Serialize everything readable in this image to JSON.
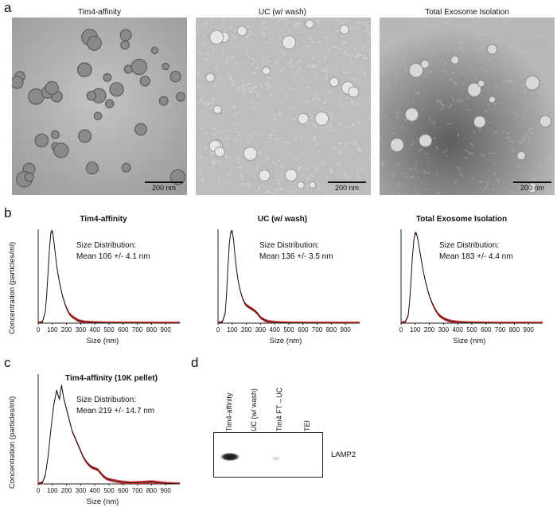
{
  "panels": {
    "a": "a",
    "b": "b",
    "c": "c",
    "d": "d"
  },
  "em_images": [
    {
      "title": "Tim4-affinity",
      "scale_label": "200 nm"
    },
    {
      "title": "UC (w/ wash)",
      "scale_label": "200 nm"
    },
    {
      "title": "Total Exosome Isolation",
      "scale_label": "200 nm"
    }
  ],
  "nta_charts": [
    {
      "title": "Tim4-affinity",
      "stat_line1": "Size Distribution:",
      "stat_line2": "Mean 106 +/- 4.1 nm"
    },
    {
      "title": "UC (w/ wash)",
      "stat_line1": "Size Distribution:",
      "stat_line2": "Mean 136 +/- 3.5 nm"
    },
    {
      "title": "Total Exosome Isolation",
      "stat_line1": "Size Distribution:",
      "stat_line2": "Mean 183 +/- 4.4 nm"
    },
    {
      "title": "Tim4-affinity (10K pellet)",
      "stat_line1": "Size Distribution:",
      "stat_line2": "Mean 219 +/- 14.7 nm"
    }
  ],
  "axis": {
    "ylabel": "Concentration (particles/ml)",
    "xlabel": "Size (nm)",
    "xticks": [
      "0",
      "100",
      "200",
      "300",
      "400",
      "500",
      "600",
      "700",
      "800",
      "900"
    ]
  },
  "western": {
    "lanes": [
      "Tim4-affinity",
      "UC (w/ wash)",
      "Tim4 FT→UC",
      "TEI"
    ],
    "band_label": "LAMP2"
  },
  "chart_data": [
    {
      "type": "line",
      "title": "Tim4-affinity",
      "xlabel": "Size (nm)",
      "ylabel": "Concentration (particles/ml)",
      "xlim": [
        0,
        1000
      ],
      "ylim": [
        0,
        1
      ],
      "x": [
        0,
        30,
        50,
        60,
        70,
        80,
        90,
        100,
        110,
        120,
        130,
        140,
        150,
        160,
        170,
        180,
        190,
        200,
        220,
        240,
        260,
        280,
        300,
        330,
        360,
        400,
        450,
        500,
        600,
        700,
        800,
        900,
        1000
      ],
      "series": [
        {
          "values": [
            0,
            0.01,
            0.12,
            0.3,
            0.55,
            0.8,
            0.97,
            0.98,
            0.88,
            0.75,
            0.62,
            0.52,
            0.44,
            0.37,
            0.3,
            0.25,
            0.2,
            0.16,
            0.1,
            0.07,
            0.05,
            0.03,
            0.02,
            0.012,
            0.008,
            0.005,
            0.003,
            0.002,
            0.001,
            0.001,
            0,
            0,
            0
          ]
        }
      ]
    },
    {
      "type": "line",
      "title": "UC (w/ wash)",
      "xlabel": "Size (nm)",
      "ylabel": "Concentration (particles/ml)",
      "xlim": [
        0,
        1000
      ],
      "ylim": [
        0,
        1
      ],
      "x": [
        0,
        30,
        50,
        60,
        70,
        80,
        90,
        100,
        110,
        120,
        130,
        140,
        150,
        160,
        170,
        180,
        190,
        200,
        220,
        240,
        260,
        280,
        300,
        330,
        360,
        400,
        450,
        500,
        600,
        700,
        800,
        900,
        1000
      ],
      "series": [
        {
          "values": [
            0,
            0.01,
            0.1,
            0.3,
            0.6,
            0.85,
            0.97,
            0.98,
            0.88,
            0.72,
            0.58,
            0.47,
            0.39,
            0.33,
            0.28,
            0.24,
            0.21,
            0.19,
            0.17,
            0.15,
            0.13,
            0.1,
            0.06,
            0.03,
            0.015,
            0.008,
            0.004,
            0.002,
            0.001,
            0,
            0,
            0,
            0
          ]
        }
      ]
    },
    {
      "type": "line",
      "title": "Total Exosome Isolation",
      "xlabel": "Size (nm)",
      "ylabel": "Concentration (particles/ml)",
      "xlim": [
        0,
        1000
      ],
      "ylim": [
        0,
        1
      ],
      "x": [
        0,
        30,
        50,
        60,
        70,
        80,
        90,
        100,
        110,
        120,
        130,
        140,
        150,
        160,
        170,
        180,
        190,
        200,
        220,
        240,
        260,
        280,
        300,
        330,
        360,
        400,
        450,
        500,
        600,
        700,
        800,
        900,
        1000
      ],
      "series": [
        {
          "values": [
            0,
            0.01,
            0.08,
            0.22,
            0.45,
            0.7,
            0.88,
            0.96,
            0.95,
            0.88,
            0.79,
            0.7,
            0.61,
            0.53,
            0.46,
            0.4,
            0.34,
            0.29,
            0.21,
            0.15,
            0.1,
            0.07,
            0.05,
            0.03,
            0.018,
            0.01,
            0.005,
            0.003,
            0.001,
            0,
            0,
            0,
            0
          ]
        }
      ]
    },
    {
      "type": "line",
      "title": "Tim4-affinity (10K pellet)",
      "xlabel": "Size (nm)",
      "ylabel": "Concentration (particles/ml)",
      "xlim": [
        0,
        1000
      ],
      "ylim": [
        0,
        1
      ],
      "x": [
        0,
        30,
        50,
        70,
        90,
        110,
        130,
        150,
        165,
        180,
        200,
        220,
        240,
        260,
        280,
        300,
        320,
        340,
        360,
        380,
        400,
        420,
        440,
        460,
        480,
        500,
        550,
        600,
        650,
        700,
        750,
        800,
        850,
        900,
        1000
      ],
      "series": [
        {
          "values": [
            0,
            0.01,
            0.08,
            0.25,
            0.5,
            0.72,
            0.85,
            0.77,
            0.9,
            0.78,
            0.68,
            0.58,
            0.48,
            0.42,
            0.36,
            0.3,
            0.24,
            0.2,
            0.17,
            0.15,
            0.14,
            0.13,
            0.1,
            0.07,
            0.05,
            0.04,
            0.025,
            0.015,
            0.01,
            0.012,
            0.015,
            0.02,
            0.012,
            0.005,
            0
          ]
        }
      ]
    }
  ]
}
